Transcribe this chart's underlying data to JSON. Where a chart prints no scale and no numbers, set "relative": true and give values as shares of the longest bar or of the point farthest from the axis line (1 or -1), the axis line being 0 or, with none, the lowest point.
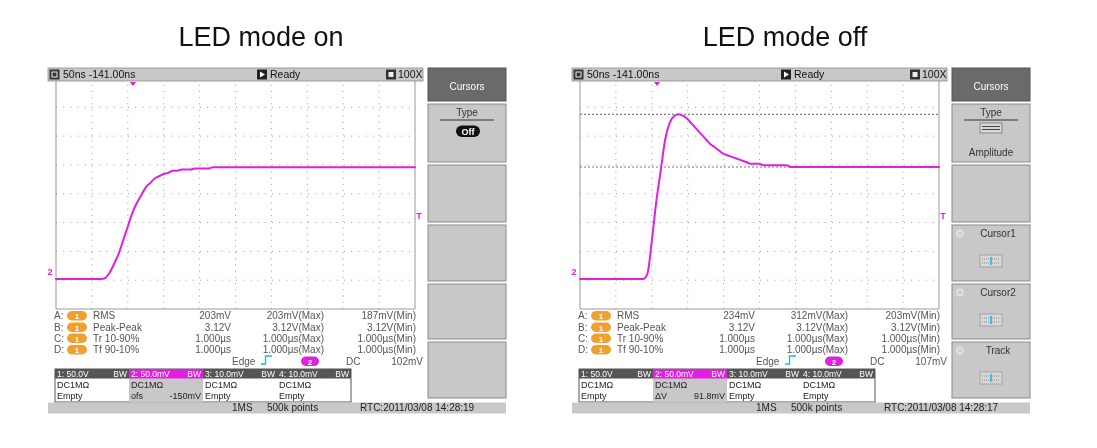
{
  "chart_data": [
    {
      "type": "line",
      "title": "LED mode on",
      "relative": true,
      "grid": true,
      "categories": [
        null,
        null,
        null,
        null,
        null,
        null,
        null,
        null,
        null,
        null,
        null,
        null,
        null,
        null,
        null,
        null,
        null,
        null,
        null,
        null,
        null,
        null,
        null,
        null,
        null,
        null,
        null,
        null,
        null,
        null,
        null,
        null,
        null,
        null,
        null,
        null,
        null,
        null,
        null,
        null,
        null,
        null,
        null,
        null,
        null,
        null,
        null,
        null,
        null,
        null,
        null,
        null,
        null,
        null,
        null,
        null,
        null,
        null,
        null,
        null,
        null,
        null,
        null,
        null,
        null,
        null,
        null,
        null,
        null,
        null,
        null,
        null,
        null,
        null,
        null,
        null,
        null,
        null,
        null,
        null,
        null
      ],
      "series": [
        {
          "color": "#e020e0",
          "values": [
            0,
            0,
            0,
            0,
            0,
            0,
            0,
            0,
            0,
            0,
            0,
            0.01,
            0.06,
            0.14,
            0.23,
            0.35,
            0.47,
            0.59,
            0.68,
            0.75,
            0.82,
            0.86,
            0.9,
            0.92,
            0.94,
            0.95,
            0.97,
            0.97,
            0.98,
            0.98,
            0.98,
            0.99,
            0.99,
            0.99,
            0.99,
            1,
            1,
            1,
            1,
            1,
            1,
            1,
            1,
            1,
            1,
            1,
            1,
            1,
            1,
            1,
            1,
            1,
            1,
            1,
            1,
            1,
            1,
            1,
            1,
            1,
            1,
            1,
            1,
            1,
            1,
            1,
            1,
            1,
            1,
            1,
            1,
            1,
            1,
            1,
            1,
            1,
            1,
            1,
            1,
            1,
            1
          ]
        }
      ],
      "annotations": [
        "50ns -141.00ns",
        "Ready",
        "100X",
        "2",
        "T",
        "A:",
        "1",
        "RMS",
        "203mV",
        "203mV(Max)",
        "187mV(Min)",
        "B:",
        "1",
        "Peak-Peak",
        "3.12V",
        "3.12V(Max)",
        "3.12V(Min)",
        "C:",
        "1",
        "Tr 10-90%",
        "1.000µs",
        "1.000µs(Max)",
        "1.000µs(Min)",
        "D:",
        "1",
        "Tf 90-10%",
        "1.000µs",
        "1.000µs(Max)",
        "1.000µs(Min)",
        "Edge",
        "2",
        "DC",
        "102mV",
        "1: 50.0V",
        "BW",
        "2: 50.0mV",
        "BW",
        "3: 10.0mV",
        "BW",
        "4: 10.0mV",
        "BW",
        "DC1MΩ",
        "DC1MΩ",
        "DC1MΩ",
        "DC1MΩ",
        "Empty",
        "ofs",
        "-150mV",
        "Empty",
        "Empty",
        "1MS",
        "500k points",
        "RTC:2011/03/08 14:28:19",
        "Cursors",
        "Type",
        "Off"
      ]
    },
    {
      "type": "line",
      "title": "LED mode off",
      "relative": true,
      "grid": true,
      "categories": [
        null,
        null,
        null,
        null,
        null,
        null,
        null,
        null,
        null,
        null,
        null,
        null,
        null,
        null,
        null,
        null,
        null,
        null,
        null,
        null,
        null,
        null,
        null,
        null,
        null,
        null,
        null,
        null,
        null,
        null,
        null,
        null,
        null,
        null,
        null,
        null,
        null,
        null,
        null,
        null,
        null,
        null,
        null,
        null,
        null,
        null,
        null,
        null,
        null,
        null,
        null,
        null,
        null,
        null,
        null,
        null,
        null,
        null,
        null,
        null,
        null,
        null,
        null,
        null,
        null,
        null,
        null,
        null,
        null,
        null,
        null,
        null,
        null,
        null,
        null,
        null,
        null,
        null,
        null,
        null,
        null
      ],
      "series": [
        {
          "color": "#e020e0",
          "values": [
            0,
            0,
            0,
            0,
            0,
            0,
            0,
            0,
            0,
            0,
            0,
            0,
            0,
            0,
            0,
            0.03,
            0.23,
            0.47,
            0.66,
            0.85,
            0.95,
            0.99,
            1,
            0.99,
            0.97,
            0.94,
            0.91,
            0.88,
            0.85,
            0.82,
            0.8,
            0.78,
            0.76,
            0.75,
            0.74,
            0.73,
            0.72,
            0.71,
            0.7,
            0.7,
            0.7,
            0.69,
            0.69,
            0.69,
            0.69,
            0.69,
            0.69,
            0.68,
            0.68,
            0.68,
            0.68,
            0.68,
            0.68,
            0.68,
            0.68,
            0.68,
            0.68,
            0.68,
            0.68,
            0.68,
            0.68,
            0.68,
            0.68,
            0.68,
            0.68,
            0.68,
            0.68,
            0.68,
            0.68,
            0.68,
            0.68,
            0.68,
            0.68,
            0.68,
            0.68,
            0.68,
            0.68,
            0.68,
            0.68,
            0.68,
            0.68
          ]
        }
      ],
      "ref_lines": [
        {
          "axis": "y",
          "value": 1,
          "color": "#7a7a7a",
          "line_style": "dotted"
        },
        {
          "axis": "y",
          "value": 0.68,
          "color": "#7a7a7a",
          "line_style": "dotted"
        }
      ],
      "annotations": [
        "50ns -141.00ns",
        "Ready",
        "100X",
        "2",
        "T",
        "A:",
        "1",
        "RMS",
        "234mV",
        "312mV(Max)",
        "203mV(Min)",
        "B:",
        "1",
        "Peak-Peak",
        "3.12V",
        "3.12V(Max)",
        "3.12V(Min)",
        "C:",
        "1",
        "Tr 10-90%",
        "1.000µs",
        "1.000µs(Max)",
        "1.000µs(Min)",
        "D:",
        "1",
        "Tf 90-10%",
        "1.000µs",
        "1.000µs(Max)",
        "1.000µs(Min)",
        "Edge",
        "2",
        "DC",
        "107mV",
        "1: 50.0V",
        "BW",
        "2: 50.0mV",
        "BW",
        "3: 10.0mV",
        "BW",
        "4: 10.0mV",
        "BW",
        "DC1MΩ",
        "DC1MΩ",
        "DC1MΩ",
        "DC1MΩ",
        "Empty",
        "ΔV",
        "91.8mV",
        "Empty",
        "Empty",
        "1MS",
        "500k points",
        "RTC:2011/03/08 14:28:17",
        "Cursors",
        "Type",
        "Amplitude",
        "Cursor1",
        "Cursor2",
        "Track"
      ]
    }
  ]
}
